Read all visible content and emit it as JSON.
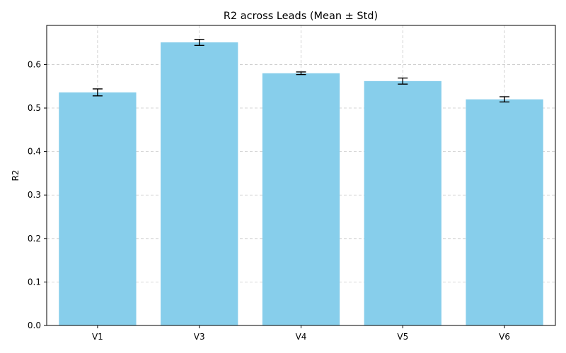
{
  "chart_data": {
    "type": "bar",
    "title": "R2 across Leads (Mean ± Std)",
    "xlabel": "",
    "ylabel": "R2",
    "categories": [
      "V1",
      "V3",
      "V4",
      "V5",
      "V6"
    ],
    "values": [
      0.536,
      0.651,
      0.58,
      0.562,
      0.52
    ],
    "errors": [
      0.008,
      0.007,
      0.003,
      0.007,
      0.006
    ],
    "ylim": [
      0,
      0.69
    ],
    "yticks": [
      0.0,
      0.1,
      0.2,
      0.3,
      0.4,
      0.5,
      0.6
    ],
    "grid": true,
    "colors": {
      "bar": "#87ceeb",
      "error": "#000000",
      "grid": "#c8c8c8"
    }
  }
}
